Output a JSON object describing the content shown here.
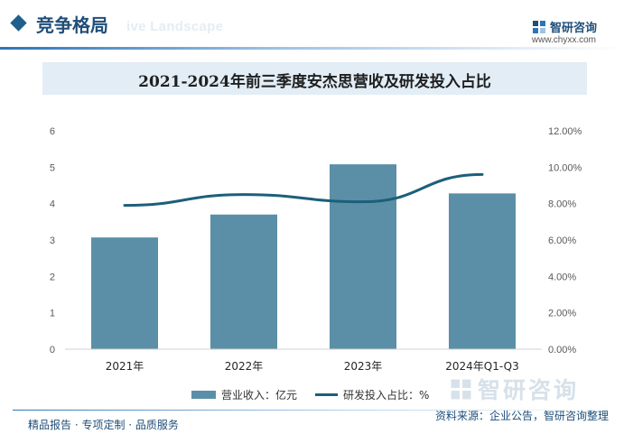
{
  "header": {
    "section_title": "竞争格局",
    "watermark_text": "ive Landscape",
    "brand_name": "智研咨询",
    "brand_url": "www.chyxx.com",
    "brand_color": "#1f4e79"
  },
  "chart_data": {
    "type": "bar+line",
    "title": "2021-2024年前三季度安杰思营收及研发投入占比",
    "categories": [
      "2021年",
      "2022年",
      "2023年",
      "2024年Q1-Q3"
    ],
    "series": [
      {
        "name": "营业收入：亿元",
        "type": "bar",
        "axis": "left",
        "color": "#5b8fa8",
        "values": [
          3.07,
          3.7,
          5.08,
          4.28
        ]
      },
      {
        "name": "研发投入占比：%",
        "type": "line",
        "axis": "right",
        "color": "#1c5f7a",
        "values": [
          7.9,
          8.5,
          8.1,
          9.6
        ]
      }
    ],
    "y_left": {
      "min": 0,
      "max": 6,
      "ticks": [
        "0",
        "1",
        "2",
        "3",
        "4",
        "5",
        "6"
      ]
    },
    "y_right": {
      "min": 0,
      "max": 12,
      "ticks": [
        "0.00%",
        "2.00%",
        "4.00%",
        "6.00%",
        "8.00%",
        "10.00%",
        "12.00%"
      ]
    },
    "grid": false,
    "legend_position": "bottom"
  },
  "legend": {
    "bar_label": "营业收入：亿元",
    "line_label": "研发投入占比：%"
  },
  "footer": {
    "left_text": "精品报告 · 专项定制 · 品质服务",
    "right_text": "资料来源：企业公告，智研咨询整理",
    "watermark_text": "智研咨询"
  }
}
